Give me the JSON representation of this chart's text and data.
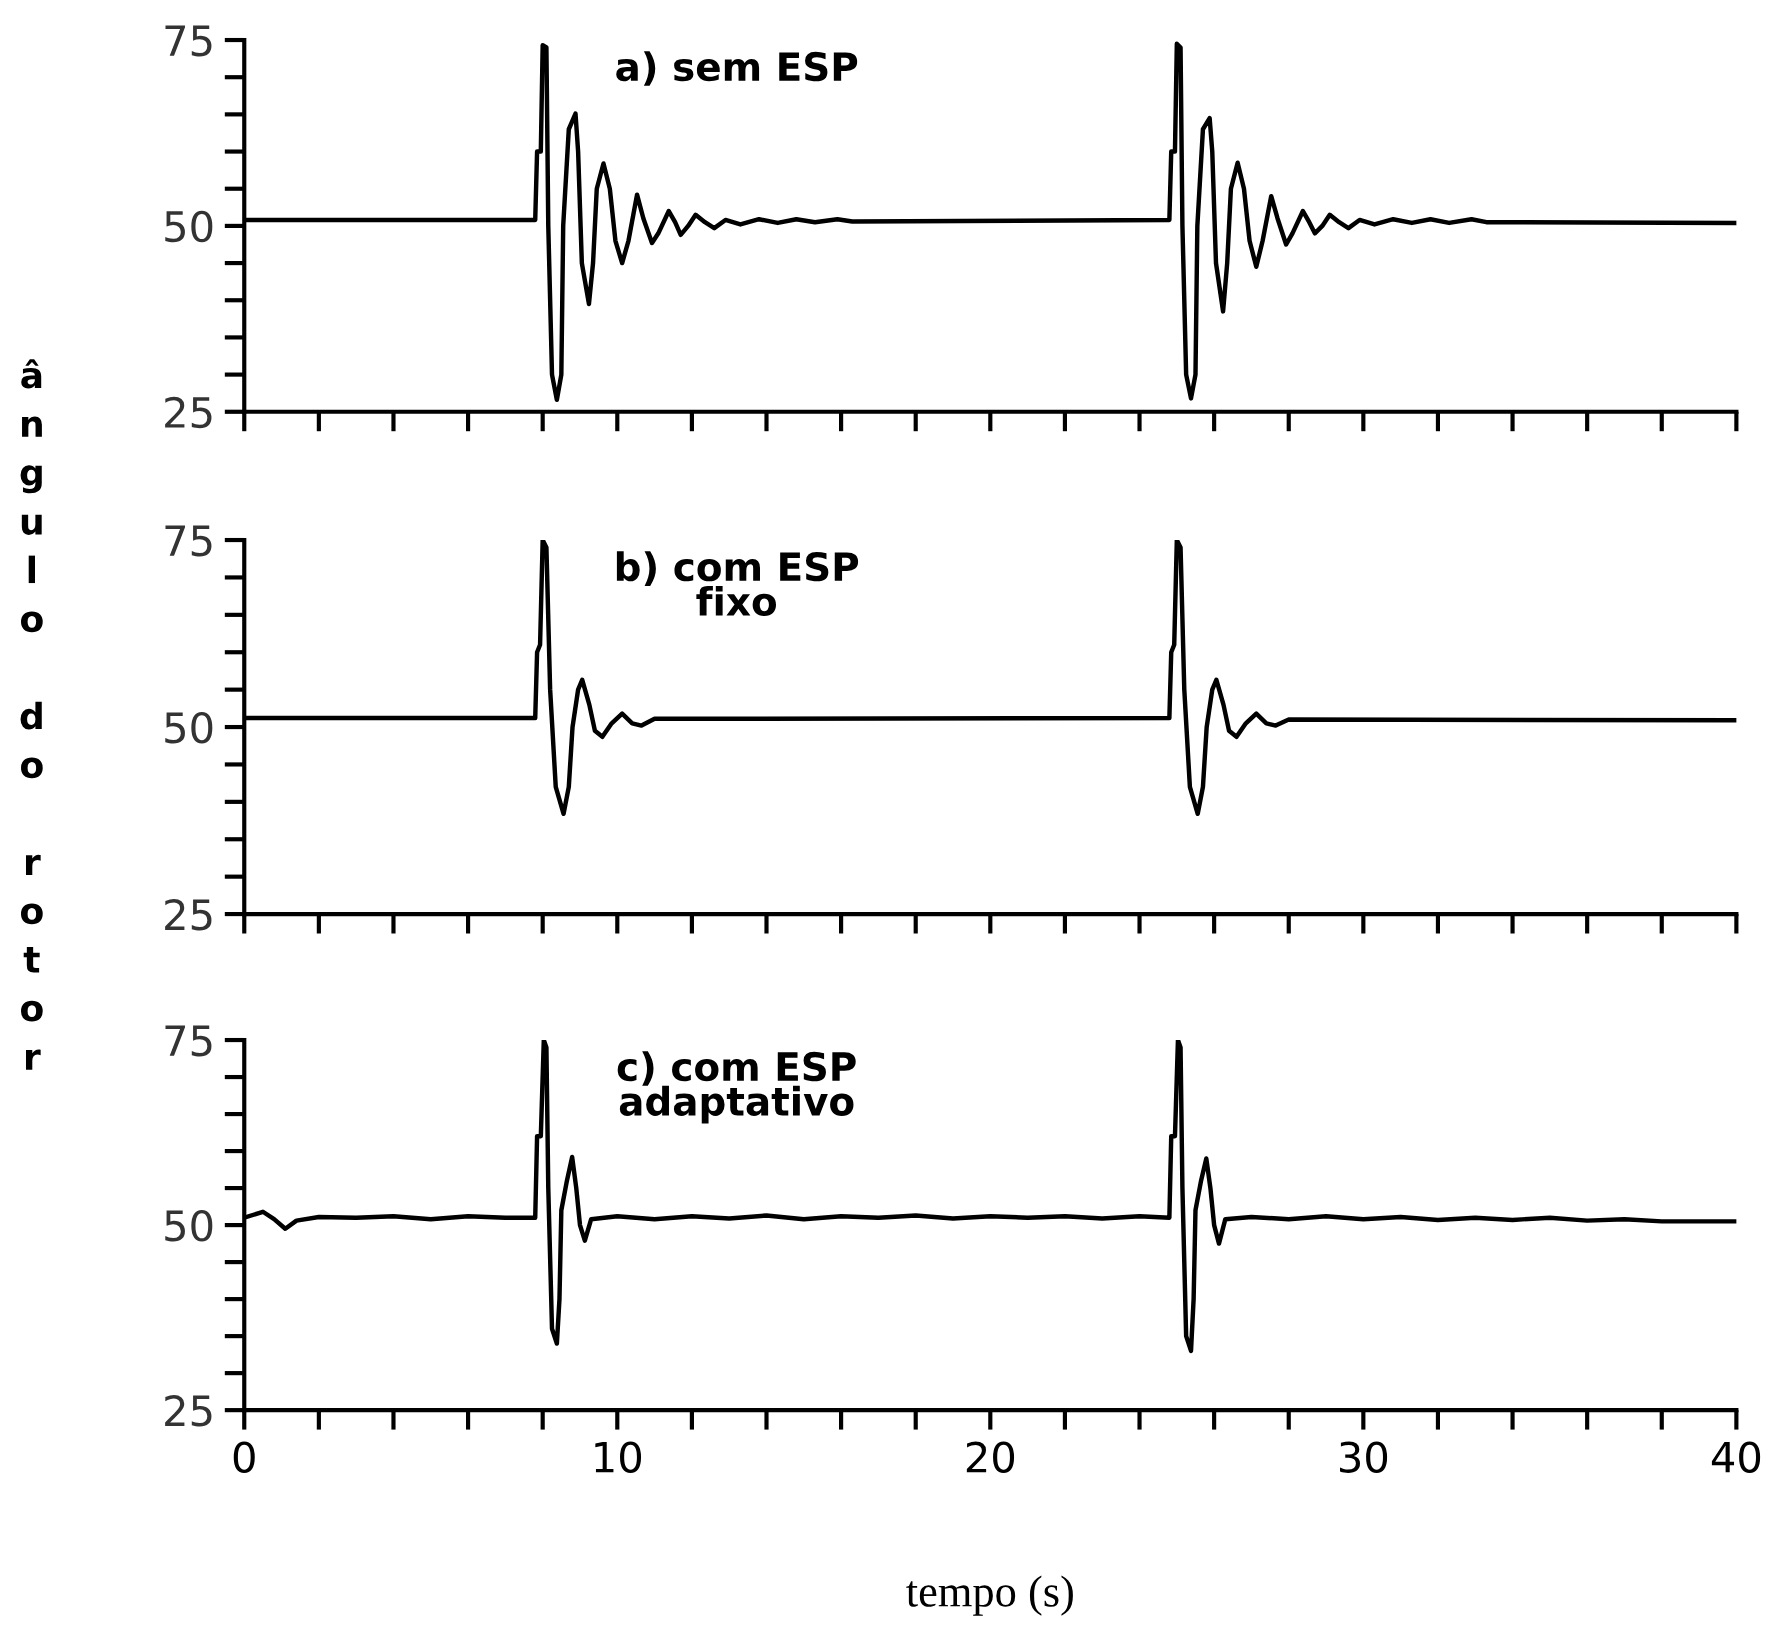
{
  "chart_data": [
    {
      "type": "line",
      "title": "a) sem ESP",
      "ylabel": "ângulo do rotor",
      "tick_labels": "y",
      "grid": false,
      "legend": false,
      "xlim": [
        0,
        40
      ],
      "ylim": [
        25,
        75
      ],
      "xticks": [
        0,
        {
          "value": 2,
          "label": null
        },
        {
          "value": 4,
          "label": null
        },
        {
          "value": 6,
          "label": null
        },
        {
          "value": 8,
          "label": null
        },
        10,
        {
          "value": 12,
          "label": null
        },
        {
          "value": 14,
          "label": null
        },
        {
          "value": 16,
          "label": null
        },
        {
          "value": 18,
          "label": null
        },
        20,
        {
          "value": 22,
          "label": null
        },
        {
          "value": 24,
          "label": null
        },
        {
          "value": 26,
          "label": null
        },
        {
          "value": 28,
          "label": null
        },
        30,
        {
          "value": 32,
          "label": null
        },
        {
          "value": 34,
          "label": null
        },
        {
          "value": 36,
          "label": null
        },
        {
          "value": 38,
          "label": null
        },
        40
      ],
      "yticks": [
        25,
        {
          "value": 30,
          "label": null
        },
        {
          "value": 35,
          "label": null
        },
        {
          "value": 40,
          "label": null
        },
        {
          "value": 45,
          "label": null
        },
        50,
        {
          "value": 55,
          "label": null
        },
        {
          "value": 60,
          "label": null
        },
        {
          "value": 65,
          "label": null
        },
        {
          "value": 70,
          "label": null
        },
        75
      ],
      "series": [
        {
          "color": "#000000",
          "x": [
            0,
            7.8,
            7.85,
            7.95,
            8.0,
            8.1,
            8.15,
            8.25,
            8.38,
            8.5,
            8.55,
            8.7,
            8.88,
            8.95,
            9.05,
            9.24,
            9.35,
            9.45,
            9.63,
            9.8,
            9.95,
            10.13,
            10.3,
            10.53,
            10.7,
            10.93,
            11.1,
            11.38,
            11.55,
            11.7,
            11.9,
            12.1,
            12.35,
            12.6,
            12.9,
            13.3,
            13.8,
            14.3,
            14.8,
            15.3,
            15.9,
            16.3,
            24.8,
            24.85,
            24.95,
            25.0,
            25.1,
            25.15,
            25.25,
            25.38,
            25.5,
            25.55,
            25.7,
            25.88,
            25.95,
            26.05,
            26.24,
            26.35,
            26.45,
            26.63,
            26.8,
            26.95,
            27.13,
            27.3,
            27.53,
            27.7,
            27.93,
            28.1,
            28.38,
            28.55,
            28.7,
            28.9,
            29.1,
            29.35,
            29.6,
            29.9,
            30.3,
            30.8,
            31.3,
            31.8,
            32.3,
            32.9,
            33.3,
            40
          ],
          "values": [
            50.8,
            50.8,
            60,
            60,
            74.3,
            74,
            50,
            30,
            26.6,
            30,
            50,
            63,
            65.1,
            60,
            45,
            39.5,
            45,
            55,
            58.4,
            55,
            48,
            45.0,
            48,
            54.2,
            51,
            47.7,
            49,
            52.0,
            50.5,
            48.8,
            50,
            51.5,
            50.5,
            49.7,
            50.8,
            50.2,
            50.9,
            50.4,
            50.9,
            50.5,
            50.9,
            50.6,
            50.8,
            60,
            60,
            74.5,
            74,
            50,
            30,
            26.8,
            30,
            50,
            63,
            64.5,
            60,
            45,
            38.5,
            45,
            55,
            58.5,
            55,
            48,
            44.5,
            48,
            54,
            51,
            47.5,
            49,
            52,
            50.5,
            49,
            50,
            51.5,
            50.5,
            49.7,
            50.8,
            50.2,
            50.9,
            50.4,
            50.9,
            50.4,
            50.9,
            50.5,
            50.4
          ]
        }
      ]
    },
    {
      "type": "line",
      "title": "b) com ESP\nfixo",
      "tick_labels": "y",
      "grid": false,
      "legend": false,
      "xlim": [
        0,
        40
      ],
      "ylim": [
        25,
        75
      ],
      "xticks": [
        0,
        {
          "value": 2,
          "label": null
        },
        {
          "value": 4,
          "label": null
        },
        {
          "value": 6,
          "label": null
        },
        {
          "value": 8,
          "label": null
        },
        10,
        {
          "value": 12,
          "label": null
        },
        {
          "value": 14,
          "label": null
        },
        {
          "value": 16,
          "label": null
        },
        {
          "value": 18,
          "label": null
        },
        20,
        {
          "value": 22,
          "label": null
        },
        {
          "value": 24,
          "label": null
        },
        {
          "value": 26,
          "label": null
        },
        {
          "value": 28,
          "label": null
        },
        30,
        {
          "value": 32,
          "label": null
        },
        {
          "value": 34,
          "label": null
        },
        {
          "value": 36,
          "label": null
        },
        {
          "value": 38,
          "label": null
        },
        40
      ],
      "yticks": [
        25,
        {
          "value": 30,
          "label": null
        },
        {
          "value": 35,
          "label": null
        },
        {
          "value": 40,
          "label": null
        },
        {
          "value": 45,
          "label": null
        },
        50,
        {
          "value": 55,
          "label": null
        },
        {
          "value": 60,
          "label": null
        },
        {
          "value": 65,
          "label": null
        },
        {
          "value": 70,
          "label": null
        },
        75
      ],
      "series": [
        {
          "color": "#000000",
          "x": [
            0,
            7.8,
            7.85,
            7.93,
            8.0,
            8.1,
            8.2,
            8.35,
            8.56,
            8.7,
            8.8,
            8.95,
            9.06,
            9.25,
            9.4,
            9.6,
            9.85,
            10.13,
            10.4,
            10.65,
            11.0,
            24.8,
            24.85,
            24.93,
            25.0,
            25.1,
            25.2,
            25.35,
            25.56,
            25.7,
            25.8,
            25.95,
            26.06,
            26.25,
            26.4,
            26.6,
            26.85,
            27.13,
            27.4,
            27.65,
            28.0,
            40
          ],
          "values": [
            51.2,
            51.2,
            60,
            61,
            75,
            74,
            55,
            42,
            38.4,
            42,
            50,
            55,
            56.3,
            53,
            49.5,
            48.7,
            50.5,
            51.8,
            50.5,
            50.2,
            51.1,
            51.2,
            60,
            61,
            75,
            74,
            55,
            42,
            38.4,
            42,
            50,
            55,
            56.3,
            53,
            49.5,
            48.7,
            50.5,
            51.8,
            50.5,
            50.2,
            51,
            50.9
          ]
        }
      ]
    },
    {
      "type": "line",
      "title": "c) com ESP\nadaptativo",
      "xlabel": "tempo (s)",
      "grid": false,
      "legend": false,
      "xlim": [
        0,
        40
      ],
      "ylim": [
        25,
        75
      ],
      "xticks": [
        0,
        {
          "value": 2,
          "label": null
        },
        {
          "value": 4,
          "label": null
        },
        {
          "value": 6,
          "label": null
        },
        {
          "value": 8,
          "label": null
        },
        10,
        {
          "value": 12,
          "label": null
        },
        {
          "value": 14,
          "label": null
        },
        {
          "value": 16,
          "label": null
        },
        {
          "value": 18,
          "label": null
        },
        20,
        {
          "value": 22,
          "label": null
        },
        {
          "value": 24,
          "label": null
        },
        {
          "value": 26,
          "label": null
        },
        {
          "value": 28,
          "label": null
        },
        30,
        {
          "value": 32,
          "label": null
        },
        {
          "value": 34,
          "label": null
        },
        {
          "value": 36,
          "label": null
        },
        {
          "value": 38,
          "label": null
        },
        40
      ],
      "yticks": [
        25,
        {
          "value": 30,
          "label": null
        },
        {
          "value": 35,
          "label": null
        },
        {
          "value": 40,
          "label": null
        },
        {
          "value": 45,
          "label": null
        },
        50,
        {
          "value": 55,
          "label": null
        },
        {
          "value": 60,
          "label": null
        },
        {
          "value": 65,
          "label": null
        },
        {
          "value": 70,
          "label": null
        },
        75
      ],
      "series": [
        {
          "color": "#000000",
          "x": [
            0,
            0.5,
            0.8,
            1.1,
            1.4,
            2,
            3,
            4,
            5,
            6,
            7,
            7.8,
            7.85,
            7.95,
            8.03,
            8.1,
            8.15,
            8.25,
            8.38,
            8.45,
            8.5,
            8.65,
            8.79,
            8.9,
            9.0,
            9.13,
            9.3,
            10,
            11,
            12,
            13,
            14,
            15,
            16,
            17,
            18,
            19,
            20,
            21,
            22,
            23,
            24,
            24.8,
            24.85,
            24.95,
            25.03,
            25.1,
            25.15,
            25.25,
            25.38,
            25.45,
            25.5,
            25.65,
            25.79,
            25.9,
            26.0,
            26.13,
            26.3,
            27,
            28,
            29,
            30,
            31,
            32,
            33,
            34,
            35,
            36,
            37,
            38,
            40
          ],
          "values": [
            51,
            51.8,
            50.8,
            49.5,
            50.6,
            51.1,
            51,
            51.2,
            50.8,
            51.2,
            51,
            51,
            62,
            62,
            75,
            74,
            55,
            36,
            34,
            40,
            52,
            56,
            59.2,
            55,
            50,
            47.9,
            50.8,
            51.2,
            50.8,
            51.2,
            50.9,
            51.3,
            50.8,
            51.2,
            51,
            51.3,
            50.9,
            51.2,
            51,
            51.2,
            50.9,
            51.2,
            51,
            62,
            62,
            75,
            74,
            55,
            35,
            33,
            40,
            52,
            56,
            59,
            55,
            50,
            47.5,
            50.8,
            51.1,
            50.8,
            51.2,
            50.8,
            51.1,
            50.7,
            51,
            50.7,
            51,
            50.6,
            50.8,
            50.5,
            50.5
          ]
        }
      ]
    }
  ]
}
